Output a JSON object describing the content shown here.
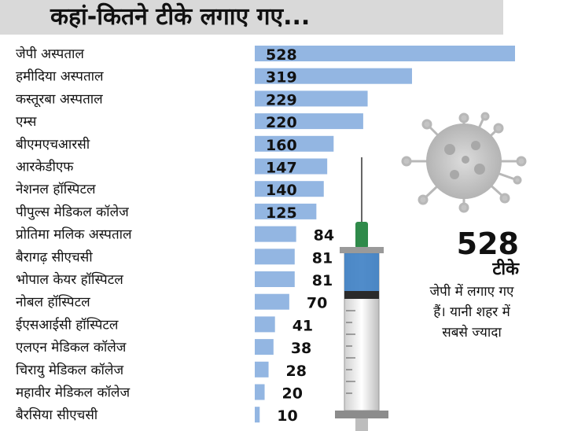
{
  "title": "कहां-कितने टीके लगाए गए...",
  "callout": {
    "number": "528",
    "unit": "टीके",
    "description": "जेपी में लगाए गए हैं। यानी शहर में सबसे ज्यादा"
  },
  "chart_data": {
    "type": "bar",
    "orientation": "horizontal",
    "title": "कहां-कितने टीके लगाए गए...",
    "bar_color": "#93b6e2",
    "categories": [
      "जेपी अस्पताल",
      "हमीदिया अस्पताल",
      "कस्तूरबा अस्पताल",
      "एम्स",
      "बीएमएचआरसी",
      "आरकेडीएफ",
      "नेशनल हॉस्पिटल",
      "पीपुल्स मेडिकल कॉलेज",
      "प्रोतिमा मलिक अस्पताल",
      "बैरागढ़ सीएचसी",
      "भोपाल केयर हॉस्पिटल",
      "नोबल हॉस्पिटल",
      "ईएसआईसी हॉस्पिटल",
      "एलएन मेडिकल कॉलेज",
      "चिरायु मेडिकल कॉलेज",
      "महावीर मेडिकल कॉलेज",
      "बैरसिया सीएचसी"
    ],
    "values": [
      528,
      319,
      229,
      220,
      160,
      147,
      140,
      125,
      84,
      81,
      81,
      70,
      41,
      38,
      28,
      20,
      10
    ]
  }
}
